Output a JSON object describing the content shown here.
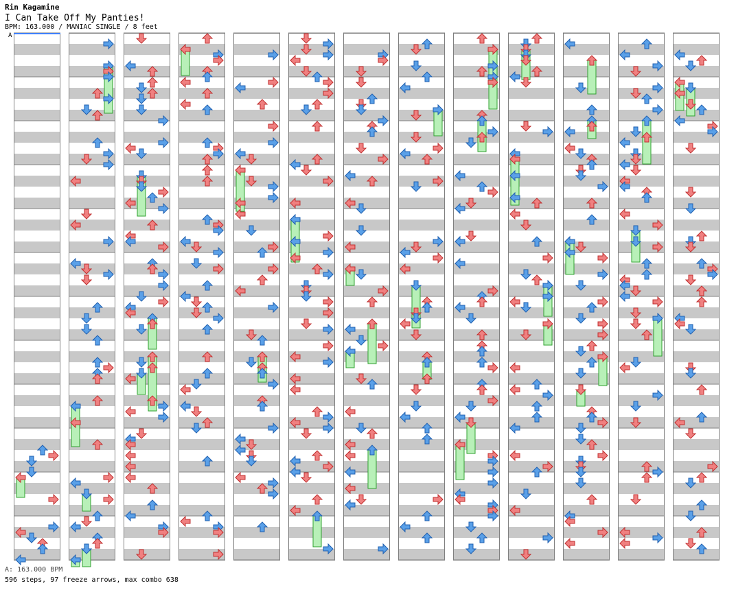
{
  "header": {
    "artist": "Rin Kagamine",
    "title": "I Can Take Off My Panties!",
    "meta": "BPM: 163.000 / MANIAC SINGLE / 8 feet"
  },
  "bpm_marker": {
    "label": "A",
    "measure": 0
  },
  "footer": {
    "bpm_line": "A: 163.000 BPM",
    "stats": "596 steps, 97 freeze arrows, max combo 638"
  },
  "chart_data": {
    "type": "stepchart",
    "difficulty": "MANIAC",
    "style": "SINGLE",
    "feet": 8,
    "bpm": 163.0,
    "steps": 596,
    "freeze_arrows": 97,
    "max_combo": 638,
    "columns": 13,
    "measures_per_column": 12,
    "lanes": [
      "left",
      "down",
      "up",
      "right"
    ],
    "colors": {
      "quarter": "#f08080",
      "eighth": "#5aa0e8",
      "sixteenth": "#e89ae8",
      "freeze": "#b8f0b8",
      "freeze_border": "#30a030",
      "stripe": "#c8c8c8",
      "border": "#808080",
      "bpm_marker": "#4080ff"
    }
  }
}
